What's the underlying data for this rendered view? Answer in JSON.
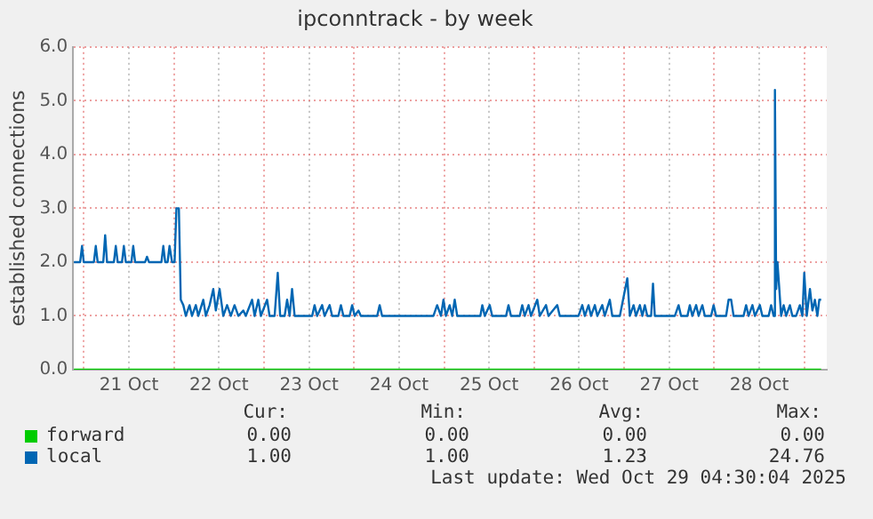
{
  "chart_data": {
    "type": "line",
    "title": "ipconntrack - by week",
    "ylabel": "established connections",
    "xlim": [
      "2025-10-20T21:07",
      "2025-10-29T06:00"
    ],
    "xticks": [
      {
        "value": "2025-10-21T00:00",
        "label": null
      },
      {
        "value": "2025-10-21T12:00",
        "label": "21 Oct"
      },
      {
        "value": "2025-10-22T00:00",
        "label": null
      },
      {
        "value": "2025-10-22T12:00",
        "label": "22 Oct"
      },
      {
        "value": "2025-10-23T00:00",
        "label": null
      },
      {
        "value": "2025-10-23T12:00",
        "label": "23 Oct"
      },
      {
        "value": "2025-10-24T00:00",
        "label": null
      },
      {
        "value": "2025-10-24T12:00",
        "label": "24 Oct"
      },
      {
        "value": "2025-10-25T00:00",
        "label": null
      },
      {
        "value": "2025-10-25T12:00",
        "label": "25 Oct"
      },
      {
        "value": "2025-10-26T00:00",
        "label": null
      },
      {
        "value": "2025-10-26T12:00",
        "label": "26 Oct"
      },
      {
        "value": "2025-10-27T00:00",
        "label": null
      },
      {
        "value": "2025-10-27T12:00",
        "label": "27 Oct"
      },
      {
        "value": "2025-10-28T00:00",
        "label": null
      },
      {
        "value": "2025-10-28T12:00",
        "label": "28 Oct"
      },
      {
        "value": "2025-10-29T00:00",
        "label": null
      }
    ],
    "ylim": [
      0,
      6
    ],
    "yticks": [
      {
        "value": 0,
        "label": "0.0"
      },
      {
        "value": 1,
        "label": "1.0"
      },
      {
        "value": 2,
        "label": "2.0"
      },
      {
        "value": 3,
        "label": "3.0"
      },
      {
        "value": 4,
        "label": "4.0"
      },
      {
        "value": 5,
        "label": "5.0"
      },
      {
        "value": 6,
        "label": "6.0"
      }
    ],
    "grid": true,
    "legend": "bottom",
    "marker": "none",
    "line_style": "solid",
    "series": [
      {
        "name": "forward",
        "color": "#00cc00",
        "x": [
          "2025-10-20T21:20",
          "2025-10-29T04:30"
        ],
        "values": [
          0,
          0
        ]
      },
      {
        "name": "local",
        "color": "#0066b3",
        "x": [
          "2025-10-20T21:20",
          "2025-10-20T23:00",
          "2025-10-20T23:30",
          "2025-10-20T23:57",
          "2025-10-21T02:40",
          "2025-10-21T03:10",
          "2025-10-21T03:40",
          "2025-10-21T05:10",
          "2025-10-21T05:40",
          "2025-10-21T06:10",
          "2025-10-21T08:00",
          "2025-10-21T08:30",
          "2025-10-21T09:00",
          "2025-10-21T10:09",
          "2025-10-21T10:39",
          "2025-10-21T11:10",
          "2025-10-21T12:40",
          "2025-10-21T13:09",
          "2025-10-21T13:39",
          "2025-10-21T16:19",
          "2025-10-21T16:49",
          "2025-10-21T17:20",
          "2025-10-21T20:40",
          "2025-10-21T21:10",
          "2025-10-21T21:40",
          "2025-10-21T22:19",
          "2025-10-21T22:49",
          "2025-10-21T23:30",
          "2025-10-22T00:10",
          "2025-10-22T00:40",
          "2025-10-22T01:19",
          "2025-10-22T01:49",
          "2025-10-22T02:30",
          "2025-10-22T03:10",
          "2025-10-22T04:09",
          "2025-10-22T04:49",
          "2025-10-22T05:50",
          "2025-10-22T06:30",
          "2025-10-22T07:49",
          "2025-10-22T08:30",
          "2025-10-22T09:30",
          "2025-10-22T10:29",
          "2025-10-22T11:10",
          "2025-10-22T12:10",
          "2025-10-22T13:09",
          "2025-10-22T14:10",
          "2025-10-22T15:10",
          "2025-10-22T16:09",
          "2025-10-22T17:10",
          "2025-10-22T18:30",
          "2025-10-22T19:09",
          "2025-10-22T20:50",
          "2025-10-22T21:30",
          "2025-10-22T22:29",
          "2025-10-22T23:10",
          "2025-10-23T00:50",
          "2025-10-23T01:29",
          "2025-10-23T02:50",
          "2025-10-23T03:40",
          "2025-10-23T04:19",
          "2025-10-23T05:30",
          "2025-10-23T06:10",
          "2025-10-23T06:50",
          "2025-10-23T07:29",
          "2025-10-23T08:10",
          "2025-10-23T12:50",
          "2025-10-23T13:29",
          "2025-10-23T14:10",
          "2025-10-23T15:30",
          "2025-10-23T16:09",
          "2025-10-23T17:30",
          "2025-10-23T18:10",
          "2025-10-23T19:49",
          "2025-10-23T20:30",
          "2025-10-23T21:10",
          "2025-10-23T22:49",
          "2025-10-23T23:30",
          "2025-10-24T00:10",
          "2025-10-24T01:11",
          "2025-10-24T01:49",
          "2025-10-24T06:10",
          "2025-10-24T06:50",
          "2025-10-24T07:29",
          "2025-10-24T08:40",
          "2025-10-24T21:10",
          "2025-10-24T22:09",
          "2025-10-24T23:10",
          "2025-10-24T23:50",
          "2025-10-25T00:30",
          "2025-10-25T01:29",
          "2025-10-25T02:10",
          "2025-10-25T02:50",
          "2025-10-25T03:30",
          "2025-10-25T05:30",
          "2025-10-25T09:40",
          "2025-10-25T10:11",
          "2025-10-25T10:51",
          "2025-10-25T12:10",
          "2025-10-25T12:50",
          "2025-10-25T16:31",
          "2025-10-25T17:10",
          "2025-10-25T17:50",
          "2025-10-25T20:10",
          "2025-10-25T20:50",
          "2025-10-25T21:30",
          "2025-10-25T22:31",
          "2025-10-25T23:10",
          "2025-10-26T00:50",
          "2025-10-26T01:31",
          "2025-10-26T03:10",
          "2025-10-26T03:50",
          "2025-10-26T06:10",
          "2025-10-26T06:50",
          "2025-10-26T11:50",
          "2025-10-26T12:50",
          "2025-10-26T13:31",
          "2025-10-26T14:30",
          "2025-10-26T15:10",
          "2025-10-26T16:11",
          "2025-10-26T16:51",
          "2025-10-26T18:10",
          "2025-10-26T18:50",
          "2025-10-26T20:10",
          "2025-10-26T20:50",
          "2025-10-26T22:51",
          "2025-10-27T00:50",
          "2025-10-27T01:31",
          "2025-10-27T02:30",
          "2025-10-27T03:10",
          "2025-10-27T04:11",
          "2025-10-27T04:51",
          "2025-10-27T05:30",
          "2025-10-27T06:10",
          "2025-10-27T07:11",
          "2025-10-27T07:41",
          "2025-10-27T08:10",
          "2025-10-27T13:31",
          "2025-10-27T14:30",
          "2025-10-27T15:10",
          "2025-10-27T16:51",
          "2025-10-27T17:30",
          "2025-10-27T18:10",
          "2025-10-27T19:11",
          "2025-10-27T19:51",
          "2025-10-27T20:50",
          "2025-10-27T21:30",
          "2025-10-27T23:10",
          "2025-10-27T23:50",
          "2025-10-28T00:30",
          "2025-10-28T03:10",
          "2025-10-28T03:50",
          "2025-10-28T04:31",
          "2025-10-28T05:10",
          "2025-10-28T07:49",
          "2025-10-28T08:30",
          "2025-10-28T09:10",
          "2025-10-28T10:11",
          "2025-10-28T10:51",
          "2025-10-28T12:10",
          "2025-10-28T12:50",
          "2025-10-28T14:30",
          "2025-10-28T15:10",
          "2025-10-28T15:50",
          "2025-10-28T16:11",
          "2025-10-28T16:31",
          "2025-10-28T16:51",
          "2025-10-28T17:21",
          "2025-10-28T17:50",
          "2025-10-28T18:30",
          "2025-10-28T19:11",
          "2025-10-28T20:10",
          "2025-10-28T20:50",
          "2025-10-28T21:50",
          "2025-10-28T22:49",
          "2025-10-28T23:30",
          "2025-10-29T00:00",
          "2025-10-29T00:40",
          "2025-10-29T01:31",
          "2025-10-29T02:10",
          "2025-10-29T02:50",
          "2025-10-29T03:30",
          "2025-10-29T04:00",
          "2025-10-29T04:30"
        ],
        "values": [
          2.0,
          2.0,
          2.3,
          2.0,
          2.0,
          2.3,
          2.0,
          2.0,
          2.5,
          2.0,
          2.0,
          2.3,
          2.0,
          2.0,
          2.3,
          2.0,
          2.0,
          2.3,
          2.0,
          2.0,
          2.1,
          2.0,
          2.0,
          2.3,
          2.0,
          2.0,
          2.3,
          2.0,
          2.0,
          3.0,
          3.0,
          1.3,
          1.2,
          1.0,
          1.2,
          1.0,
          1.2,
          1.0,
          1.3,
          1.0,
          1.2,
          1.5,
          1.1,
          1.5,
          1.0,
          1.2,
          1.0,
          1.2,
          1.0,
          1.1,
          1.0,
          1.3,
          1.0,
          1.3,
          1.0,
          1.3,
          1.0,
          1.0,
          1.8,
          1.0,
          1.0,
          1.3,
          1.0,
          1.5,
          1.0,
          1.0,
          1.2,
          1.0,
          1.2,
          1.0,
          1.2,
          1.0,
          1.0,
          1.2,
          1.0,
          1.0,
          1.2,
          1.0,
          1.1,
          1.0,
          1.0,
          1.2,
          1.0,
          1.0,
          1.0,
          1.2,
          1.0,
          1.3,
          1.0,
          1.2,
          1.0,
          1.3,
          1.0,
          1.0,
          1.0,
          1.2,
          1.0,
          1.2,
          1.0,
          1.0,
          1.2,
          1.0,
          1.0,
          1.2,
          1.0,
          1.2,
          1.0,
          1.3,
          1.0,
          1.2,
          1.0,
          1.2,
          1.0,
          1.0,
          1.2,
          1.0,
          1.2,
          1.0,
          1.2,
          1.0,
          1.2,
          1.0,
          1.3,
          1.0,
          1.0,
          1.7,
          1.0,
          1.2,
          1.0,
          1.2,
          1.0,
          1.2,
          1.0,
          1.0,
          1.6,
          1.0,
          1.0,
          1.2,
          1.0,
          1.0,
          1.2,
          1.0,
          1.2,
          1.0,
          1.2,
          1.0,
          1.0,
          1.2,
          1.0,
          1.0,
          1.3,
          1.3,
          1.0,
          1.0,
          1.2,
          1.0,
          1.2,
          1.0,
          1.2,
          1.0,
          1.0,
          1.2,
          1.0,
          5.2,
          1.5,
          2.0,
          1.5,
          1.0,
          1.2,
          1.0,
          1.2,
          1.0,
          1.0,
          1.2,
          1.0,
          1.8,
          1.0,
          1.5,
          1.1,
          1.3,
          1.0,
          1.3,
          1.3
        ]
      }
    ],
    "annotations": [
      "Cur:",
      "Min:",
      "Avg:",
      "Max:",
      "0.00",
      "0.00",
      "0.00",
      "0.00",
      "1.00",
      "1.00",
      "1.23",
      "24.76",
      "Last update: Wed Oct 29 04:30:04 2025"
    ]
  }
}
